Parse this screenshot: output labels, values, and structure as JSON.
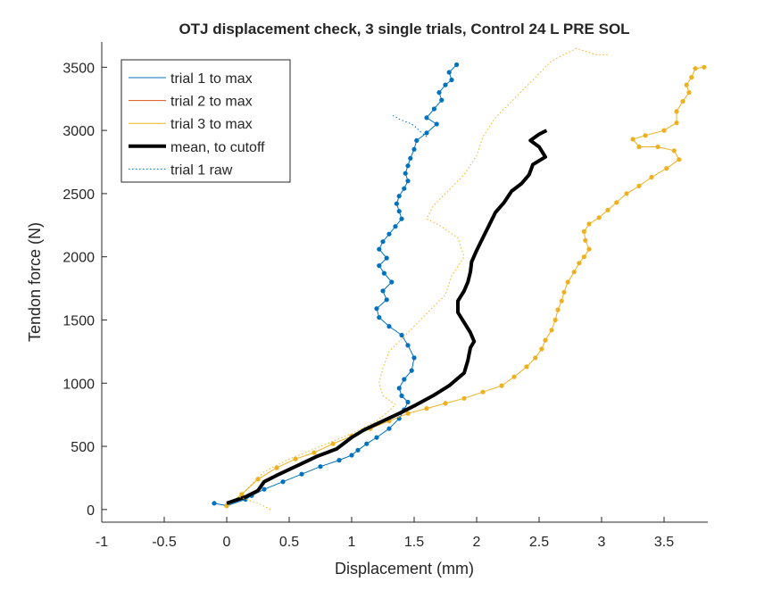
{
  "chart_data": {
    "type": "line",
    "title": "OTJ displacement check, 3 single trials, Control 24 L PRE SOL",
    "xlabel": "Displacement (mm)",
    "ylabel": "Tendon force (N)",
    "xlim": [
      -1,
      3.85
    ],
    "ylim": [
      -100,
      3700
    ],
    "xticks": [
      -1,
      -0.5,
      0,
      0.5,
      1,
      1.5,
      2,
      2.5,
      3,
      3.5
    ],
    "xtick_labels": [
      "-1",
      "-0.5",
      "0",
      "0.5",
      "1",
      "1.5",
      "2",
      "2.5",
      "3",
      "3.5"
    ],
    "yticks": [
      0,
      500,
      1000,
      1500,
      2000,
      2500,
      3000,
      3500
    ],
    "ytick_labels": [
      "0",
      "500",
      "1000",
      "1500",
      "2000",
      "2500",
      "3000",
      "3500"
    ],
    "grid": false,
    "legend_position": "top-left",
    "legend": [
      {
        "label": "trial 1 to max",
        "color": "#0072BD",
        "style": "solid-thin"
      },
      {
        "label": "trial 2 to max",
        "color": "#D95319",
        "style": "solid-thin"
      },
      {
        "label": "trial 3 to max",
        "color": "#EDB120",
        "style": "solid-thin"
      },
      {
        "label": "mean, to cutoff",
        "color": "#000000",
        "style": "solid-thick"
      },
      {
        "label": "trial 1 raw",
        "color": "#0072BD",
        "style": "dotted"
      }
    ],
    "series": [
      {
        "name": "trial 1 to max",
        "color": "#0072BD",
        "markers": true,
        "points": [
          [
            -0.1,
            50
          ],
          [
            0,
            30
          ],
          [
            0.15,
            80
          ],
          [
            0.2,
            110
          ],
          [
            0.3,
            160
          ],
          [
            0.45,
            220
          ],
          [
            0.6,
            280
          ],
          [
            0.75,
            340
          ],
          [
            0.9,
            390
          ],
          [
            1.0,
            430
          ],
          [
            1.05,
            470
          ],
          [
            1.12,
            520
          ],
          [
            1.2,
            570
          ],
          [
            1.3,
            640
          ],
          [
            1.38,
            720
          ],
          [
            1.42,
            790
          ],
          [
            1.45,
            850
          ],
          [
            1.4,
            900
          ],
          [
            1.38,
            960
          ],
          [
            1.42,
            1030
          ],
          [
            1.48,
            1100
          ],
          [
            1.5,
            1200
          ],
          [
            1.45,
            1300
          ],
          [
            1.4,
            1380
          ],
          [
            1.3,
            1450
          ],
          [
            1.22,
            1520
          ],
          [
            1.2,
            1590
          ],
          [
            1.28,
            1660
          ],
          [
            1.25,
            1730
          ],
          [
            1.32,
            1800
          ],
          [
            1.26,
            1870
          ],
          [
            1.22,
            1930
          ],
          [
            1.28,
            1990
          ],
          [
            1.22,
            2060
          ],
          [
            1.25,
            2120
          ],
          [
            1.3,
            2180
          ],
          [
            1.35,
            2240
          ],
          [
            1.4,
            2300
          ],
          [
            1.38,
            2360
          ],
          [
            1.36,
            2420
          ],
          [
            1.38,
            2480
          ],
          [
            1.42,
            2540
          ],
          [
            1.45,
            2600
          ],
          [
            1.43,
            2660
          ],
          [
            1.45,
            2720
          ],
          [
            1.47,
            2780
          ],
          [
            1.5,
            2850
          ],
          [
            1.52,
            2920
          ],
          [
            1.6,
            2980
          ],
          [
            1.68,
            3050
          ],
          [
            1.6,
            3100
          ],
          [
            1.66,
            3170
          ],
          [
            1.72,
            3240
          ],
          [
            1.7,
            3300
          ],
          [
            1.75,
            3360
          ],
          [
            1.8,
            3400
          ],
          [
            1.78,
            3460
          ],
          [
            1.84,
            3520
          ]
        ]
      },
      {
        "name": "trial 3 to max",
        "color": "#EDB120",
        "markers": true,
        "points": [
          [
            0,
            30
          ],
          [
            0.12,
            120
          ],
          [
            0.25,
            240
          ],
          [
            0.4,
            330
          ],
          [
            0.55,
            400
          ],
          [
            0.7,
            450
          ],
          [
            0.85,
            520
          ],
          [
            1.0,
            580
          ],
          [
            1.15,
            640
          ],
          [
            1.3,
            700
          ],
          [
            1.45,
            760
          ],
          [
            1.6,
            800
          ],
          [
            1.75,
            840
          ],
          [
            1.9,
            880
          ],
          [
            2.05,
            930
          ],
          [
            2.2,
            980
          ],
          [
            2.3,
            1050
          ],
          [
            2.4,
            1130
          ],
          [
            2.47,
            1200
          ],
          [
            2.52,
            1270
          ],
          [
            2.55,
            1340
          ],
          [
            2.6,
            1420
          ],
          [
            2.63,
            1500
          ],
          [
            2.65,
            1580
          ],
          [
            2.68,
            1650
          ],
          [
            2.7,
            1720
          ],
          [
            2.73,
            1800
          ],
          [
            2.78,
            1880
          ],
          [
            2.82,
            1950
          ],
          [
            2.86,
            2000
          ],
          [
            2.9,
            2060
          ],
          [
            2.87,
            2130
          ],
          [
            2.86,
            2200
          ],
          [
            2.9,
            2260
          ],
          [
            2.98,
            2310
          ],
          [
            3.05,
            2370
          ],
          [
            3.12,
            2430
          ],
          [
            3.2,
            2500
          ],
          [
            3.3,
            2560
          ],
          [
            3.4,
            2630
          ],
          [
            3.52,
            2700
          ],
          [
            3.62,
            2770
          ],
          [
            3.58,
            2840
          ],
          [
            3.45,
            2870
          ],
          [
            3.3,
            2870
          ],
          [
            3.25,
            2930
          ],
          [
            3.35,
            2960
          ],
          [
            3.5,
            3000
          ],
          [
            3.6,
            3060
          ],
          [
            3.6,
            3150
          ],
          [
            3.65,
            3230
          ],
          [
            3.7,
            3300
          ],
          [
            3.68,
            3360
          ],
          [
            3.72,
            3420
          ],
          [
            3.75,
            3490
          ],
          [
            3.82,
            3500
          ]
        ]
      },
      {
        "name": "mean, to cutoff",
        "color": "#000000",
        "markers": false,
        "points": [
          [
            0,
            50
          ],
          [
            0.15,
            100
          ],
          [
            0.25,
            150
          ],
          [
            0.3,
            220
          ],
          [
            0.4,
            270
          ],
          [
            0.55,
            340
          ],
          [
            0.72,
            420
          ],
          [
            0.88,
            480
          ],
          [
            1.0,
            570
          ],
          [
            1.1,
            630
          ],
          [
            1.25,
            700
          ],
          [
            1.38,
            760
          ],
          [
            1.5,
            820
          ],
          [
            1.65,
            900
          ],
          [
            1.78,
            980
          ],
          [
            1.9,
            1080
          ],
          [
            1.93,
            1180
          ],
          [
            1.95,
            1280
          ],
          [
            1.98,
            1330
          ],
          [
            1.95,
            1400
          ],
          [
            1.9,
            1480
          ],
          [
            1.85,
            1560
          ],
          [
            1.85,
            1650
          ],
          [
            1.9,
            1730
          ],
          [
            1.93,
            1800
          ],
          [
            1.95,
            1880
          ],
          [
            1.96,
            1960
          ],
          [
            2.0,
            2050
          ],
          [
            2.05,
            2150
          ],
          [
            2.1,
            2250
          ],
          [
            2.15,
            2350
          ],
          [
            2.22,
            2430
          ],
          [
            2.28,
            2520
          ],
          [
            2.36,
            2580
          ],
          [
            2.42,
            2650
          ],
          [
            2.45,
            2730
          ],
          [
            2.55,
            2790
          ],
          [
            2.5,
            2870
          ],
          [
            2.43,
            2920
          ],
          [
            2.5,
            2970
          ],
          [
            2.56,
            3000
          ]
        ]
      },
      {
        "name": "trial 1 raw",
        "color": "#0072BD",
        "markers": false,
        "dashed": true,
        "points": [
          [
            1.6,
            2950
          ],
          [
            1.55,
            2990
          ],
          [
            1.52,
            3020
          ],
          [
            1.48,
            3050
          ],
          [
            1.43,
            3070
          ],
          [
            1.38,
            3090
          ],
          [
            1.35,
            3110
          ],
          [
            1.32,
            3120
          ]
        ]
      },
      {
        "name": "trial 3 raw",
        "color": "#EDB120",
        "markers": false,
        "dashed": true,
        "points": [
          [
            0.35,
            0
          ],
          [
            0.25,
            50
          ],
          [
            0.1,
            100
          ],
          [
            0.2,
            200
          ],
          [
            0.3,
            300
          ],
          [
            0.5,
            400
          ],
          [
            0.75,
            500
          ],
          [
            1.0,
            600
          ],
          [
            1.2,
            700
          ],
          [
            1.3,
            780
          ],
          [
            1.35,
            830
          ],
          [
            1.25,
            900
          ],
          [
            1.22,
            1000
          ],
          [
            1.25,
            1120
          ],
          [
            1.3,
            1250
          ],
          [
            1.45,
            1400
          ],
          [
            1.6,
            1550
          ],
          [
            1.75,
            1700
          ],
          [
            1.8,
            1850
          ],
          [
            1.9,
            2000
          ],
          [
            1.85,
            2150
          ],
          [
            1.7,
            2250
          ],
          [
            1.6,
            2300
          ],
          [
            1.65,
            2400
          ],
          [
            1.75,
            2500
          ],
          [
            1.9,
            2650
          ],
          [
            2.0,
            2800
          ],
          [
            2.05,
            2950
          ],
          [
            2.15,
            3100
          ],
          [
            2.3,
            3250
          ],
          [
            2.45,
            3400
          ],
          [
            2.6,
            3550
          ],
          [
            2.8,
            3650
          ],
          [
            2.95,
            3600
          ],
          [
            3.05,
            3600
          ]
        ]
      }
    ]
  }
}
